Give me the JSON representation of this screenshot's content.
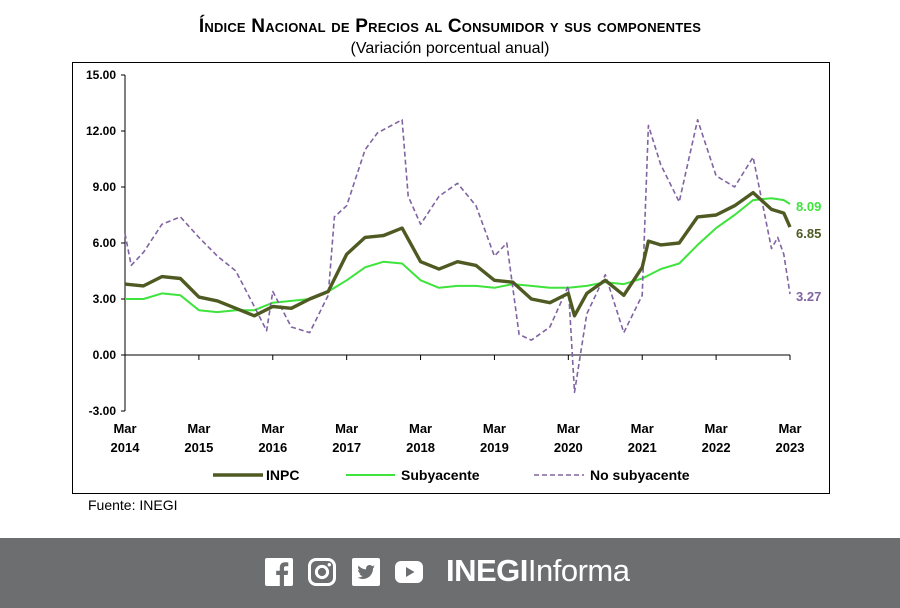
{
  "chart_data": {
    "type": "line",
    "title": "Índice Nacional de Precios al Consumidor y sus componentes",
    "subtitle": "(Variación porcentual anual)",
    "ylim": [
      -3,
      15
    ],
    "yticks": [
      "15.00",
      "12.00",
      "9.00",
      "6.00",
      "3.00",
      "0.00",
      "-3.00"
    ],
    "ytick_values": [
      15,
      12,
      9,
      6,
      3,
      0,
      -3
    ],
    "xticks": [
      {
        "month": "Mar",
        "year": "2014"
      },
      {
        "month": "Mar",
        "year": "2015"
      },
      {
        "month": "Mar",
        "year": "2016"
      },
      {
        "month": "Mar",
        "year": "2017"
      },
      {
        "month": "Mar",
        "year": "2018"
      },
      {
        "month": "Mar",
        "year": "2019"
      },
      {
        "month": "Mar",
        "year": "2020"
      },
      {
        "month": "Mar",
        "year": "2021"
      },
      {
        "month": "Mar",
        "year": "2022"
      },
      {
        "month": "Mar",
        "year": "2023"
      }
    ],
    "x_start": "2014-03",
    "x_end": "2023-03",
    "legend_position": "bottom",
    "series": [
      {
        "name": "INPC",
        "color": "#4f5a23",
        "style": "solid-thick",
        "end_label": "6.85",
        "points": [
          [
            "2014-03",
            3.8
          ],
          [
            "2014-06",
            3.7
          ],
          [
            "2014-09",
            4.2
          ],
          [
            "2014-12",
            4.1
          ],
          [
            "2015-03",
            3.1
          ],
          [
            "2015-06",
            2.9
          ],
          [
            "2015-09",
            2.5
          ],
          [
            "2015-12",
            2.1
          ],
          [
            "2016-03",
            2.6
          ],
          [
            "2016-06",
            2.5
          ],
          [
            "2016-09",
            3.0
          ],
          [
            "2016-12",
            3.4
          ],
          [
            "2017-03",
            5.4
          ],
          [
            "2017-06",
            6.3
          ],
          [
            "2017-09",
            6.4
          ],
          [
            "2017-12",
            6.8
          ],
          [
            "2018-03",
            5.0
          ],
          [
            "2018-06",
            4.6
          ],
          [
            "2018-09",
            5.0
          ],
          [
            "2018-12",
            4.8
          ],
          [
            "2019-03",
            4.0
          ],
          [
            "2019-06",
            3.9
          ],
          [
            "2019-09",
            3.0
          ],
          [
            "2019-12",
            2.8
          ],
          [
            "2020-03",
            3.3
          ],
          [
            "2020-04",
            2.1
          ],
          [
            "2020-06",
            3.3
          ],
          [
            "2020-09",
            4.0
          ],
          [
            "2020-12",
            3.2
          ],
          [
            "2021-03",
            4.7
          ],
          [
            "2021-04",
            6.1
          ],
          [
            "2021-06",
            5.9
          ],
          [
            "2021-09",
            6.0
          ],
          [
            "2021-12",
            7.4
          ],
          [
            "2022-03",
            7.5
          ],
          [
            "2022-06",
            8.0
          ],
          [
            "2022-09",
            8.7
          ],
          [
            "2022-12",
            7.8
          ],
          [
            "2023-02",
            7.6
          ],
          [
            "2023-03",
            6.85
          ]
        ]
      },
      {
        "name": "Subyacente",
        "color": "#3ee33c",
        "style": "solid",
        "end_label": "8.09",
        "points": [
          [
            "2014-03",
            3.0
          ],
          [
            "2014-06",
            3.0
          ],
          [
            "2014-09",
            3.3
          ],
          [
            "2014-12",
            3.2
          ],
          [
            "2015-03",
            2.4
          ],
          [
            "2015-06",
            2.3
          ],
          [
            "2015-09",
            2.4
          ],
          [
            "2015-12",
            2.4
          ],
          [
            "2016-03",
            2.8
          ],
          [
            "2016-06",
            2.9
          ],
          [
            "2016-09",
            3.0
          ],
          [
            "2016-12",
            3.4
          ],
          [
            "2017-03",
            4.0
          ],
          [
            "2017-06",
            4.7
          ],
          [
            "2017-09",
            5.0
          ],
          [
            "2017-12",
            4.9
          ],
          [
            "2018-03",
            4.0
          ],
          [
            "2018-06",
            3.6
          ],
          [
            "2018-09",
            3.7
          ],
          [
            "2018-12",
            3.7
          ],
          [
            "2019-03",
            3.6
          ],
          [
            "2019-06",
            3.8
          ],
          [
            "2019-09",
            3.7
          ],
          [
            "2019-12",
            3.6
          ],
          [
            "2020-03",
            3.6
          ],
          [
            "2020-06",
            3.7
          ],
          [
            "2020-09",
            3.9
          ],
          [
            "2020-12",
            3.8
          ],
          [
            "2021-03",
            4.1
          ],
          [
            "2021-06",
            4.6
          ],
          [
            "2021-09",
            4.9
          ],
          [
            "2021-12",
            5.9
          ],
          [
            "2022-03",
            6.8
          ],
          [
            "2022-06",
            7.5
          ],
          [
            "2022-09",
            8.3
          ],
          [
            "2022-12",
            8.4
          ],
          [
            "2023-02",
            8.3
          ],
          [
            "2023-03",
            8.09
          ]
        ]
      },
      {
        "name": "No subyacente",
        "color": "#8064a2",
        "style": "dashed",
        "end_label": "3.27",
        "points": [
          [
            "2014-03",
            6.5
          ],
          [
            "2014-04",
            4.8
          ],
          [
            "2014-06",
            5.5
          ],
          [
            "2014-09",
            7.0
          ],
          [
            "2014-12",
            7.4
          ],
          [
            "2015-03",
            6.3
          ],
          [
            "2015-06",
            5.3
          ],
          [
            "2015-09",
            4.5
          ],
          [
            "2015-12",
            2.6
          ],
          [
            "2016-02",
            1.3
          ],
          [
            "2016-03",
            3.4
          ],
          [
            "2016-06",
            1.5
          ],
          [
            "2016-09",
            1.2
          ],
          [
            "2016-12",
            3.2
          ],
          [
            "2017-01",
            7.4
          ],
          [
            "2017-03",
            8.0
          ],
          [
            "2017-06",
            11.0
          ],
          [
            "2017-08",
            11.9
          ],
          [
            "2017-12",
            12.6
          ],
          [
            "2018-01",
            8.5
          ],
          [
            "2018-03",
            7.0
          ],
          [
            "2018-06",
            8.5
          ],
          [
            "2018-09",
            9.2
          ],
          [
            "2018-12",
            8.0
          ],
          [
            "2019-03",
            5.3
          ],
          [
            "2019-05",
            6.0
          ],
          [
            "2019-07",
            1.1
          ],
          [
            "2019-09",
            0.8
          ],
          [
            "2019-12",
            1.5
          ],
          [
            "2020-03",
            3.7
          ],
          [
            "2020-04",
            -2.0
          ],
          [
            "2020-06",
            2.2
          ],
          [
            "2020-09",
            4.3
          ],
          [
            "2020-12",
            1.2
          ],
          [
            "2021-03",
            3.2
          ],
          [
            "2021-04",
            12.3
          ],
          [
            "2021-06",
            10.2
          ],
          [
            "2021-09",
            8.2
          ],
          [
            "2021-12",
            12.6
          ],
          [
            "2022-03",
            9.6
          ],
          [
            "2022-06",
            9.0
          ],
          [
            "2022-09",
            10.6
          ],
          [
            "2022-12",
            5.7
          ],
          [
            "2023-01",
            6.3
          ],
          [
            "2023-02",
            5.4
          ],
          [
            "2023-03",
            3.27
          ]
        ]
      }
    ]
  },
  "source": "Fuente: INEGI",
  "footer": {
    "brand_bold": "INEGI",
    "brand_light": "Informa",
    "background": "#6d6e70",
    "social_icons": [
      "facebook-icon",
      "instagram-icon",
      "twitter-icon",
      "youtube-icon"
    ]
  }
}
